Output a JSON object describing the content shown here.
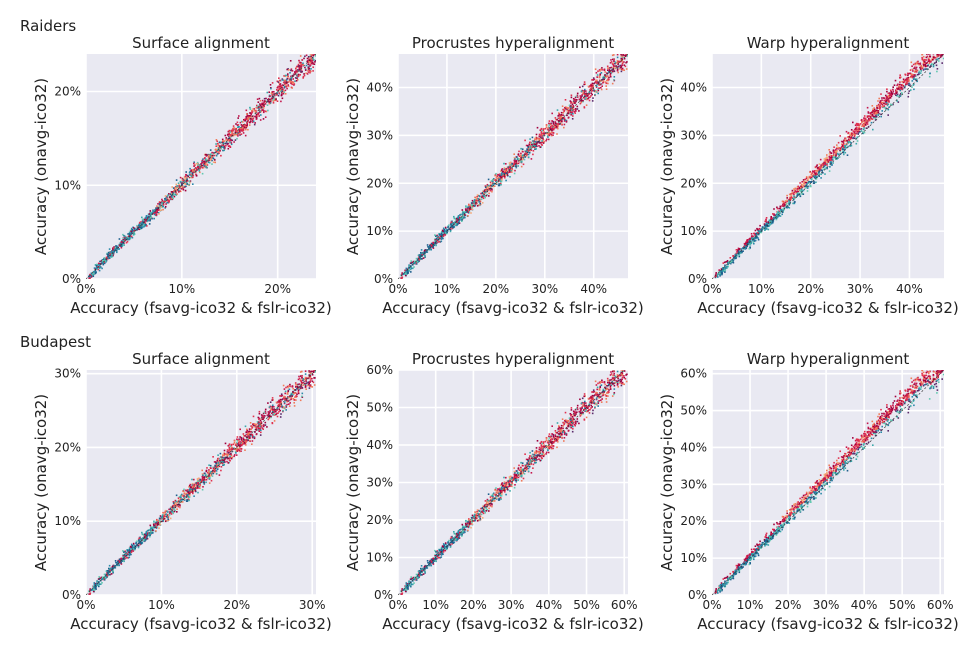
{
  "rows": [
    {
      "label": "Raiders"
    },
    {
      "label": "Budapest"
    }
  ],
  "colors": {
    "panel_bg": "#e9e9f2",
    "grid": "#ffffff",
    "diagonal": "#333333",
    "point_palette": [
      "#a0003c",
      "#c4164c",
      "#e0304e",
      "#f07a5a",
      "#f5a878",
      "#62c8b0",
      "#3aa8a8",
      "#2a88a8",
      "#1e5f8c",
      "#5a2a6a"
    ]
  },
  "chart_data": [
    {
      "type": "scatter",
      "row": 0,
      "col": 0,
      "title": "Surface alignment",
      "xlabel": "Accuracy (fsavg-ico32 & fslr-ico32)",
      "ylabel": "Accuracy (onavg-ico32)",
      "xlim": [
        0,
        24
      ],
      "ylim": [
        0,
        24
      ],
      "xticks": [
        0,
        10,
        20
      ],
      "yticks": [
        0,
        10,
        20
      ],
      "tick_labels_x": [
        "0%",
        "10%",
        "20%"
      ],
      "tick_labels_y": [
        "0%",
        "10%",
        "20%"
      ],
      "grid": true,
      "diagonal": "y = x",
      "series": [
        {
          "values_x": [
            1,
            3,
            5,
            7,
            9,
            11,
            13,
            15,
            17,
            19,
            21,
            23
          ],
          "values_y": [
            1.2,
            3.3,
            5.2,
            7.1,
            9.2,
            11.3,
            13.2,
            15.1,
            17.2,
            19.1,
            21.2,
            23.1
          ]
        }
      ]
    },
    {
      "type": "scatter",
      "row": 0,
      "col": 1,
      "title": "Procrustes hyperalignment",
      "xlabel": "Accuracy (fsavg-ico32 & fslr-ico32)",
      "ylabel": "Accuracy (onavg-ico32)",
      "xlim": [
        0,
        47
      ],
      "ylim": [
        0,
        47
      ],
      "xticks": [
        0,
        10,
        20,
        30,
        40
      ],
      "yticks": [
        0,
        10,
        20,
        30,
        40
      ],
      "tick_labels_x": [
        "0%",
        "10%",
        "20%",
        "30%",
        "40%"
      ],
      "tick_labels_y": [
        "0%",
        "10%",
        "20%",
        "30%",
        "40%"
      ],
      "grid": true,
      "diagonal": "y = x",
      "series": [
        {
          "values_x": [
            2,
            6,
            10,
            14,
            18,
            22,
            26,
            30,
            34,
            38,
            42,
            46
          ],
          "values_y": [
            2.3,
            6.4,
            10.5,
            14.4,
            18.6,
            22.5,
            26.6,
            30.5,
            34.6,
            38.4,
            42.5,
            46.3
          ]
        }
      ]
    },
    {
      "type": "scatter",
      "row": 0,
      "col": 2,
      "title": "Warp hyperalignment",
      "xlabel": "Accuracy (fsavg-ico32 & fslr-ico32)",
      "ylabel": "Accuracy (onavg-ico32)",
      "xlim": [
        0,
        47
      ],
      "ylim": [
        0,
        47
      ],
      "xticks": [
        0,
        10,
        20,
        30,
        40
      ],
      "yticks": [
        0,
        10,
        20,
        30,
        40
      ],
      "tick_labels_x": [
        "0%",
        "10%",
        "20%",
        "30%",
        "40%"
      ],
      "tick_labels_y": [
        "0%",
        "10%",
        "20%",
        "30%",
        "40%"
      ],
      "grid": true,
      "diagonal": "y = x",
      "series": [
        {
          "values_x": [
            2,
            6,
            10,
            14,
            18,
            22,
            26,
            30,
            34,
            38,
            42,
            46
          ],
          "values_y": [
            2.4,
            6.6,
            10.8,
            14.9,
            19.1,
            23.2,
            27.3,
            31.4,
            35.5,
            39.6,
            43.6,
            47.0
          ]
        }
      ]
    },
    {
      "type": "scatter",
      "row": 1,
      "col": 0,
      "title": "Surface alignment",
      "xlabel": "Accuracy (fsavg-ico32 & fslr-ico32)",
      "ylabel": "Accuracy (onavg-ico32)",
      "xlim": [
        0,
        30.5
      ],
      "ylim": [
        0,
        30.5
      ],
      "xticks": [
        0,
        10,
        20,
        30
      ],
      "yticks": [
        0,
        10,
        20,
        30
      ],
      "tick_labels_x": [
        "0%",
        "10%",
        "20%",
        "30%"
      ],
      "tick_labels_y": [
        "0%",
        "10%",
        "20%",
        "30%"
      ],
      "grid": true,
      "diagonal": "y = x",
      "series": [
        {
          "values_x": [
            1,
            4,
            7,
            10,
            13,
            16,
            19,
            22,
            25,
            28,
            30
          ],
          "values_y": [
            1.2,
            4.3,
            7.3,
            10.4,
            13.4,
            16.3,
            19.4,
            22.3,
            25.3,
            28.2,
            30.1
          ]
        }
      ]
    },
    {
      "type": "scatter",
      "row": 1,
      "col": 1,
      "title": "Procrustes hyperalignment",
      "xlabel": "Accuracy (fsavg-ico32 & fslr-ico32)",
      "ylabel": "Accuracy (onavg-ico32)",
      "xlim": [
        0,
        61
      ],
      "ylim": [
        0,
        60
      ],
      "xticks": [
        0,
        10,
        20,
        30,
        40,
        50,
        60
      ],
      "yticks": [
        0,
        10,
        20,
        30,
        40,
        50,
        60
      ],
      "tick_labels_x": [
        "0%",
        "10%",
        "20%",
        "30%",
        "40%",
        "50%",
        "60%"
      ],
      "tick_labels_y": [
        "0%",
        "10%",
        "20%",
        "30%",
        "40%",
        "50%",
        "60%"
      ],
      "grid": true,
      "diagonal": "y = x",
      "series": [
        {
          "values_x": [
            2,
            7,
            12,
            17,
            22,
            27,
            32,
            37,
            42,
            47,
            52,
            57
          ],
          "values_y": [
            2.3,
            7.4,
            12.5,
            17.6,
            22.6,
            27.7,
            32.7,
            37.8,
            42.8,
            47.8,
            52.7,
            57.6
          ]
        }
      ]
    },
    {
      "type": "scatter",
      "row": 1,
      "col": 2,
      "title": "Warp hyperalignment",
      "xlabel": "Accuracy (fsavg-ico32 & fslr-ico32)",
      "ylabel": "Accuracy (onavg-ico32)",
      "xlim": [
        0,
        61
      ],
      "ylim": [
        0,
        61
      ],
      "xticks": [
        0,
        10,
        20,
        30,
        40,
        50,
        60
      ],
      "yticks": [
        0,
        10,
        20,
        30,
        40,
        50,
        60
      ],
      "tick_labels_x": [
        "0%",
        "10%",
        "20%",
        "30%",
        "40%",
        "50%",
        "60%"
      ],
      "tick_labels_y": [
        "0%",
        "10%",
        "20%",
        "30%",
        "40%",
        "50%",
        "60%"
      ],
      "grid": true,
      "diagonal": "y = x",
      "series": [
        {
          "values_x": [
            2,
            7,
            12,
            17,
            22,
            27,
            32,
            37,
            42,
            47,
            52,
            57
          ],
          "values_y": [
            2.5,
            7.8,
            13.1,
            18.3,
            23.5,
            28.6,
            33.8,
            38.9,
            44.0,
            49.1,
            54.1,
            59.0
          ]
        }
      ]
    }
  ]
}
